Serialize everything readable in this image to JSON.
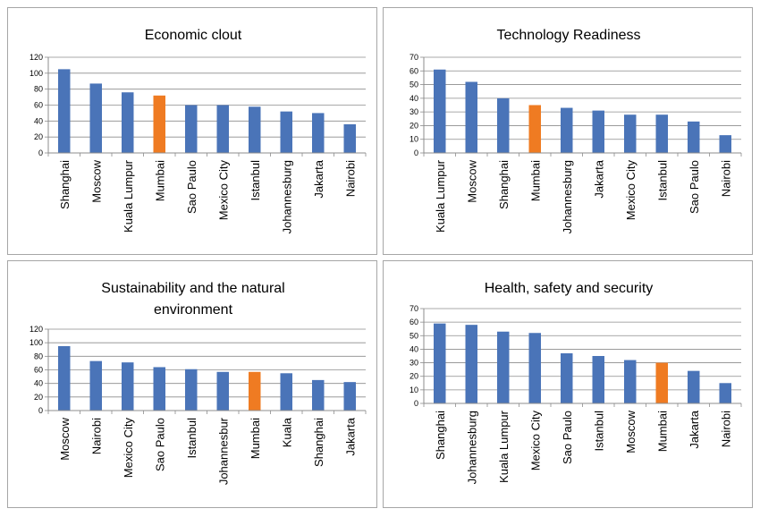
{
  "colors": {
    "bar": "#4a74b8",
    "highlight": "#ef7b22",
    "grid": "#8c8c8c",
    "axis": "#8c8c8c"
  },
  "chart_data": [
    {
      "type": "bar",
      "title_lines": [
        "Economic clout"
      ],
      "categories": [
        "Shanghai",
        "Moscow",
        "Kuala Lumpur",
        "Mumbai",
        "Sao Paulo",
        "Mexico City",
        "Istanbul",
        "Johannesburg",
        "Jakarta",
        "Nairobi"
      ],
      "values": [
        105,
        87,
        76,
        72,
        60,
        60,
        58,
        52,
        50,
        36
      ],
      "highlight": "Mumbai",
      "ylim": [
        0,
        120
      ],
      "yticks": [
        0,
        20,
        40,
        60,
        80,
        100,
        120
      ],
      "grid": true,
      "legend": "none"
    },
    {
      "type": "bar",
      "title_lines": [
        "Technology Readiness"
      ],
      "categories": [
        "Kuala Lumpur",
        "Moscow",
        "Shanghai",
        "Mumbai",
        "Johannesburg",
        "Jakarta",
        "Mexico City",
        "Istanbul",
        "Sao Paulo",
        "Nairobi"
      ],
      "values": [
        61,
        52,
        40,
        35,
        33,
        31,
        28,
        28,
        23,
        13
      ],
      "highlight": "Mumbai",
      "ylim": [
        0,
        70
      ],
      "yticks": [
        0,
        10,
        20,
        30,
        40,
        50,
        60,
        70
      ],
      "grid": true,
      "legend": "none"
    },
    {
      "type": "bar",
      "title_lines": [
        "Sustainability and the natural",
        "environment"
      ],
      "categories": [
        "Moscow",
        "Nairobi",
        "Mexico City",
        "Sao Paulo",
        "Istanbul",
        "Johannesbur",
        "Mumbai",
        "Kuala",
        "Shanghai",
        "Jakarta"
      ],
      "values": [
        95,
        73,
        71,
        64,
        61,
        57,
        57,
        55,
        45,
        42
      ],
      "highlight": "Mumbai",
      "ylim": [
        0,
        120
      ],
      "yticks": [
        0,
        20,
        40,
        60,
        80,
        100,
        120
      ],
      "grid": true,
      "legend": "none"
    },
    {
      "type": "bar",
      "title_lines": [
        "Health, safety and security"
      ],
      "categories": [
        "Shanghai",
        "Johannesburg",
        "Kuala Lumpur",
        "Mexico City",
        "Sao Paulo",
        "Istanbul",
        "Moscow",
        "Mumbai",
        "Jakarta",
        "Nairobi"
      ],
      "values": [
        59,
        58,
        53,
        52,
        37,
        35,
        32,
        30,
        24,
        15
      ],
      "highlight": "Mumbai",
      "ylim": [
        0,
        70
      ],
      "yticks": [
        0,
        10,
        20,
        30,
        40,
        50,
        60,
        70
      ],
      "grid": true,
      "legend": "none"
    }
  ]
}
